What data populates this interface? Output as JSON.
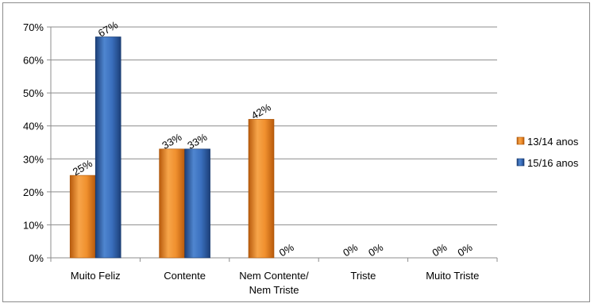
{
  "chart_data": {
    "type": "bar",
    "categories": [
      "Muito Feliz",
      "Contente",
      "Nem Contente/\nNem Triste",
      "Triste",
      "Muito Triste"
    ],
    "series": [
      {
        "name": "13/14 anos",
        "color": "#e07b1b",
        "values": [
          25,
          33,
          42,
          0,
          0
        ],
        "labels": [
          "25%",
          "33%",
          "42%",
          "0%",
          "0%"
        ]
      },
      {
        "name": "15/16 anos",
        "color": "#2a5fa8",
        "values": [
          67,
          33,
          0,
          0,
          0
        ],
        "labels": [
          "67%",
          "33%",
          "0%",
          "0%",
          "0%"
        ]
      }
    ],
    "ylim": [
      0,
      70
    ],
    "yticks": [
      0,
      10,
      20,
      30,
      40,
      50,
      60,
      70
    ],
    "ytick_labels": [
      "0%",
      "10%",
      "20%",
      "30%",
      "40%",
      "50%",
      "60%",
      "70%"
    ],
    "grid": true,
    "legend": "right",
    "title": "",
    "xlabel": "",
    "ylabel": ""
  }
}
